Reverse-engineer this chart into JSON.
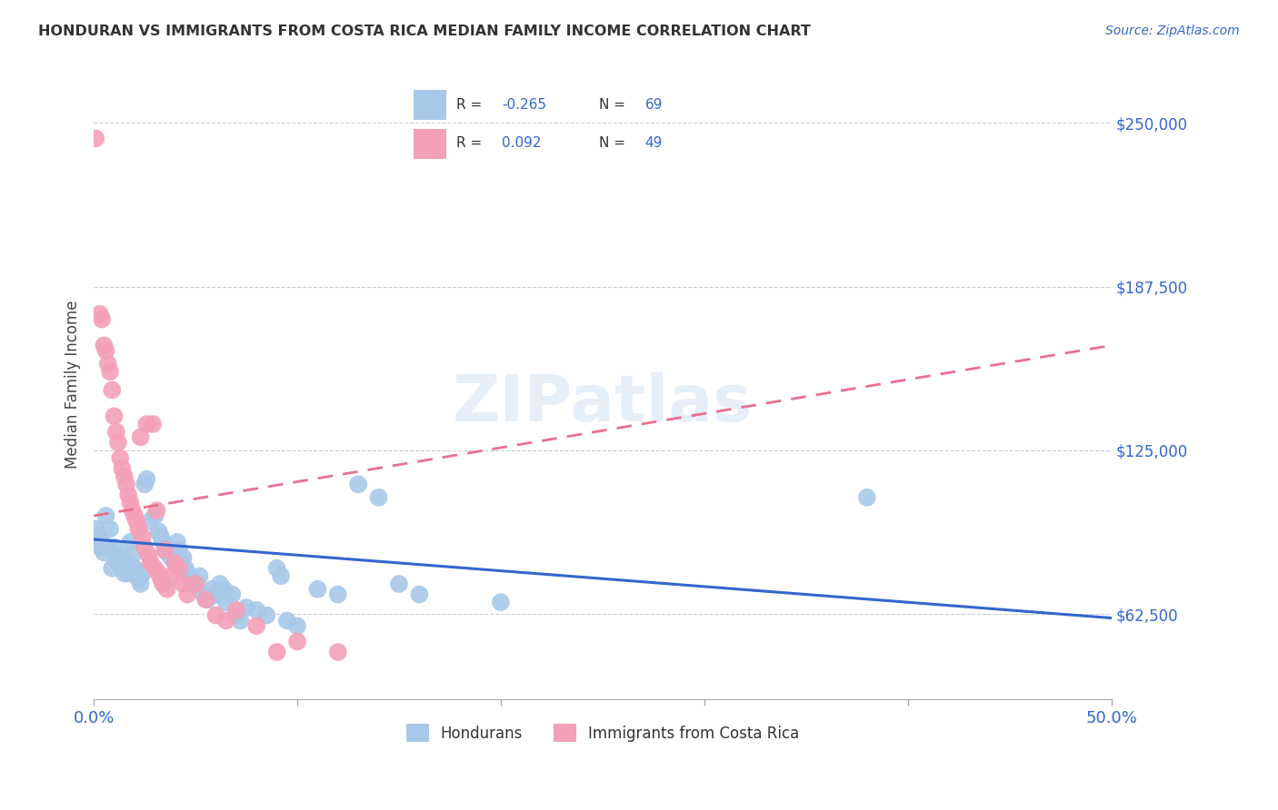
{
  "title": "HONDURAN VS IMMIGRANTS FROM COSTA RICA MEDIAN FAMILY INCOME CORRELATION CHART",
  "source": "Source: ZipAtlas.com",
  "ylabel": "Median Family Income",
  "y_ticks": [
    62500,
    125000,
    187500,
    250000
  ],
  "y_tick_labels": [
    "$62,500",
    "$125,000",
    "$187,500",
    "$250,000"
  ],
  "x_range": [
    0.0,
    0.5
  ],
  "y_range": [
    30000,
    270000
  ],
  "legend_label_blue": "Hondurans",
  "legend_label_pink": "Immigrants from Costa Rica",
  "blue_color": "#a8c8e8",
  "pink_color": "#f4a0b8",
  "blue_line_color": "#3366cc",
  "pink_line_color": "#e87090",
  "watermark": "ZIPatlas",
  "blue_scatter": [
    [
      0.001,
      95000
    ],
    [
      0.002,
      92000
    ],
    [
      0.003,
      88000
    ],
    [
      0.004,
      90000
    ],
    [
      0.005,
      86000
    ],
    [
      0.006,
      100000
    ],
    [
      0.007,
      88000
    ],
    [
      0.008,
      95000
    ],
    [
      0.009,
      80000
    ],
    [
      0.01,
      88000
    ],
    [
      0.011,
      84000
    ],
    [
      0.012,
      82000
    ],
    [
      0.013,
      85000
    ],
    [
      0.014,
      80000
    ],
    [
      0.015,
      78000
    ],
    [
      0.016,
      82000
    ],
    [
      0.017,
      78000
    ],
    [
      0.018,
      90000
    ],
    [
      0.019,
      85000
    ],
    [
      0.02,
      80000
    ],
    [
      0.021,
      78000
    ],
    [
      0.022,
      76000
    ],
    [
      0.023,
      74000
    ],
    [
      0.024,
      78000
    ],
    [
      0.025,
      112000
    ],
    [
      0.026,
      114000
    ],
    [
      0.028,
      98000
    ],
    [
      0.03,
      100000
    ],
    [
      0.032,
      94000
    ],
    [
      0.033,
      92000
    ],
    [
      0.034,
      90000
    ],
    [
      0.035,
      87000
    ],
    [
      0.036,
      86000
    ],
    [
      0.038,
      84000
    ],
    [
      0.04,
      82000
    ],
    [
      0.041,
      90000
    ],
    [
      0.042,
      87000
    ],
    [
      0.043,
      82000
    ],
    [
      0.044,
      84000
    ],
    [
      0.045,
      80000
    ],
    [
      0.046,
      78000
    ],
    [
      0.048,
      76000
    ],
    [
      0.05,
      74000
    ],
    [
      0.052,
      77000
    ],
    [
      0.054,
      70000
    ],
    [
      0.056,
      68000
    ],
    [
      0.058,
      72000
    ],
    [
      0.06,
      70000
    ],
    [
      0.062,
      74000
    ],
    [
      0.064,
      72000
    ],
    [
      0.065,
      67000
    ],
    [
      0.068,
      70000
    ],
    [
      0.07,
      62000
    ],
    [
      0.072,
      60000
    ],
    [
      0.075,
      65000
    ],
    [
      0.08,
      64000
    ],
    [
      0.085,
      62000
    ],
    [
      0.09,
      80000
    ],
    [
      0.092,
      77000
    ],
    [
      0.095,
      60000
    ],
    [
      0.1,
      58000
    ],
    [
      0.11,
      72000
    ],
    [
      0.12,
      70000
    ],
    [
      0.13,
      112000
    ],
    [
      0.14,
      107000
    ],
    [
      0.15,
      74000
    ],
    [
      0.16,
      70000
    ],
    [
      0.2,
      67000
    ],
    [
      0.38,
      107000
    ]
  ],
  "pink_scatter": [
    [
      0.001,
      244000
    ],
    [
      0.003,
      177000
    ],
    [
      0.004,
      175000
    ],
    [
      0.005,
      165000
    ],
    [
      0.006,
      163000
    ],
    [
      0.007,
      158000
    ],
    [
      0.008,
      155000
    ],
    [
      0.009,
      148000
    ],
    [
      0.01,
      138000
    ],
    [
      0.011,
      132000
    ],
    [
      0.012,
      128000
    ],
    [
      0.013,
      122000
    ],
    [
      0.014,
      118000
    ],
    [
      0.015,
      115000
    ],
    [
      0.016,
      112000
    ],
    [
      0.017,
      108000
    ],
    [
      0.018,
      105000
    ],
    [
      0.019,
      102000
    ],
    [
      0.02,
      100000
    ],
    [
      0.021,
      98000
    ],
    [
      0.022,
      95000
    ],
    [
      0.023,
      130000
    ],
    [
      0.024,
      92000
    ],
    [
      0.025,
      88000
    ],
    [
      0.026,
      135000
    ],
    [
      0.027,
      85000
    ],
    [
      0.028,
      82000
    ],
    [
      0.029,
      135000
    ],
    [
      0.03,
      80000
    ],
    [
      0.031,
      102000
    ],
    [
      0.032,
      78000
    ],
    [
      0.033,
      76000
    ],
    [
      0.034,
      74000
    ],
    [
      0.035,
      87000
    ],
    [
      0.036,
      72000
    ],
    [
      0.038,
      77000
    ],
    [
      0.04,
      82000
    ],
    [
      0.042,
      80000
    ],
    [
      0.044,
      74000
    ],
    [
      0.046,
      70000
    ],
    [
      0.05,
      74000
    ],
    [
      0.055,
      68000
    ],
    [
      0.06,
      62000
    ],
    [
      0.065,
      60000
    ],
    [
      0.07,
      64000
    ],
    [
      0.08,
      58000
    ],
    [
      0.09,
      48000
    ],
    [
      0.1,
      52000
    ],
    [
      0.12,
      48000
    ]
  ],
  "blue_trendline": [
    [
      0.0,
      91000
    ],
    [
      0.5,
      61000
    ]
  ],
  "pink_trendline": [
    [
      0.0,
      100000
    ],
    [
      0.5,
      165000
    ]
  ]
}
